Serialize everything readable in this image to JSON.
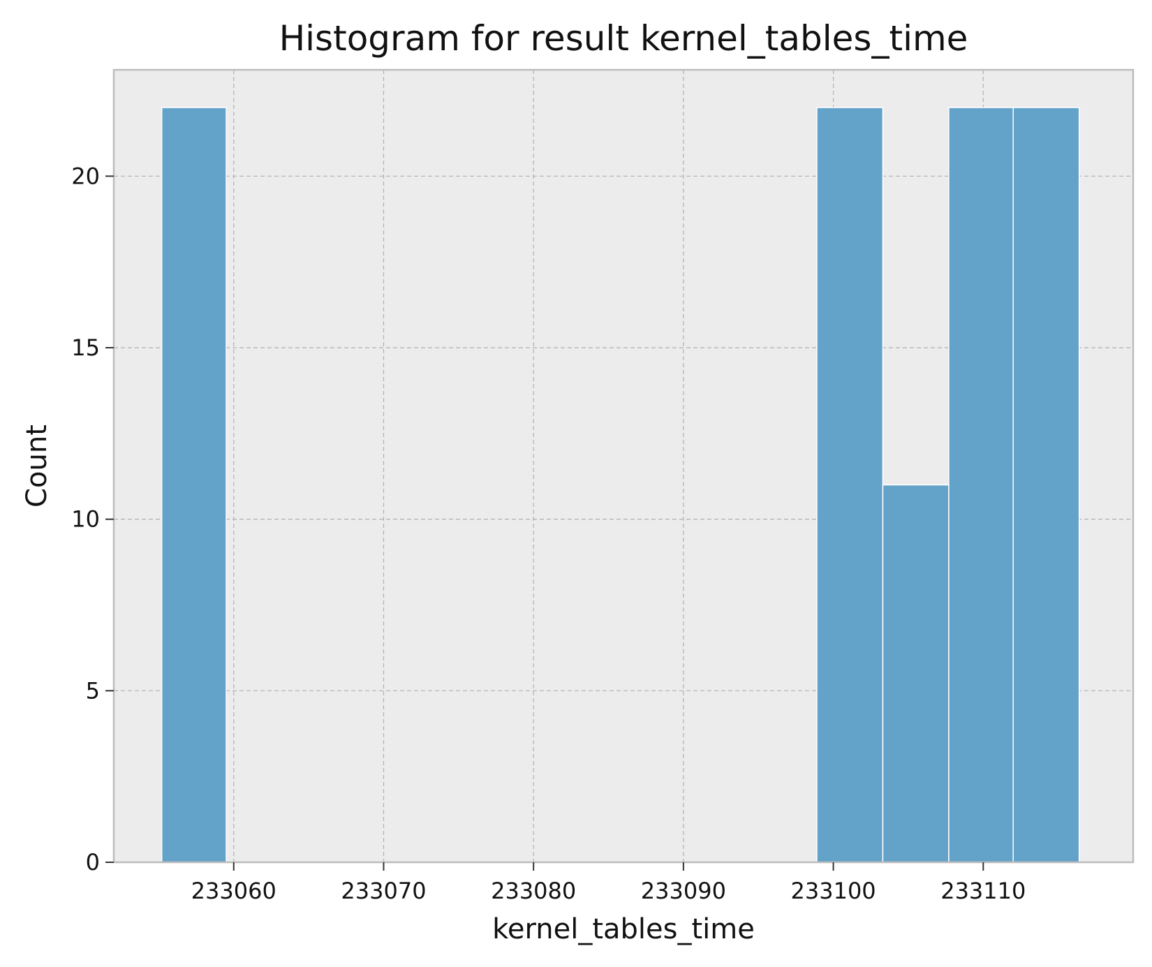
{
  "chart_data": {
    "type": "bar",
    "title": "Histogram for result kernel_tables_time",
    "xlabel": "kernel_tables_time",
    "ylabel": "Count",
    "xlim": [
      233052,
      233120
    ],
    "ylim": [
      0,
      23.1
    ],
    "grid": true,
    "x_ticks": [
      233060,
      233070,
      233080,
      233090,
      233100,
      233110
    ],
    "x_tick_labels": [
      "233060",
      "233070",
      "233080",
      "233090",
      "233100",
      "233110"
    ],
    "y_ticks": [
      0,
      5,
      10,
      15,
      20
    ],
    "y_tick_labels": [
      "0",
      "5",
      "10",
      "15",
      "20"
    ],
    "bins": [
      {
        "start": 233055.2,
        "end": 233059.5,
        "count": 22
      },
      {
        "start": 233059.5,
        "end": 233063.9,
        "count": 0
      },
      {
        "start": 233063.9,
        "end": 233068.3,
        "count": 0
      },
      {
        "start": 233068.3,
        "end": 233072.6,
        "count": 0
      },
      {
        "start": 233072.6,
        "end": 233077.0,
        "count": 0
      },
      {
        "start": 233077.0,
        "end": 233081.4,
        "count": 0
      },
      {
        "start": 233081.4,
        "end": 233085.8,
        "count": 0
      },
      {
        "start": 233085.8,
        "end": 233090.1,
        "count": 0
      },
      {
        "start": 233090.1,
        "end": 233094.5,
        "count": 0
      },
      {
        "start": 233094.5,
        "end": 233098.9,
        "count": 0
      },
      {
        "start": 233098.9,
        "end": 233103.3,
        "count": 22
      },
      {
        "start": 233103.3,
        "end": 233107.7,
        "count": 11
      },
      {
        "start": 233107.7,
        "end": 233112.0,
        "count": 22
      },
      {
        "start": 233112.0,
        "end": 233116.4,
        "count": 22
      }
    ],
    "colors": {
      "bar": "#63a2c9",
      "bar_edge": "#ffffff",
      "plot_background": "#ececec"
    }
  }
}
